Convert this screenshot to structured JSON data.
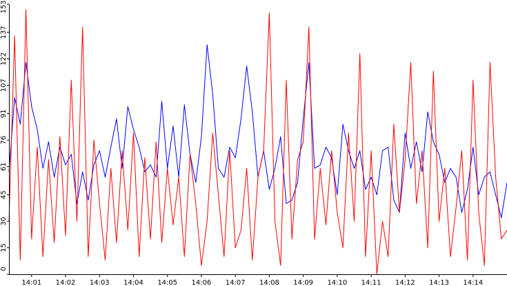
{
  "chart_data": {
    "type": "line",
    "title": "",
    "xlabel": "",
    "ylabel": "",
    "ylim": [
      0,
      153
    ],
    "xlim": [
      "14:00:20",
      "14:15:00"
    ],
    "y_ticks": [
      0,
      15,
      30,
      45,
      61,
      76,
      91,
      107,
      122,
      137,
      153
    ],
    "x_ticks": [
      "14:01",
      "14:02",
      "14:03",
      "14:04",
      "14:05",
      "14:06",
      "14:07",
      "14:08",
      "14:09",
      "14:10",
      "14:11",
      "14:12",
      "14:13",
      "14:14"
    ],
    "grid": false,
    "legend": "none",
    "series": [
      {
        "color": "#0000ff",
        "x": [
          "14:00:20",
          "14:00:30",
          "14:00:40",
          "14:00:50",
          "14:01:00",
          "14:01:10",
          "14:01:20",
          "14:01:30",
          "14:01:40",
          "14:01:50",
          "14:02:00",
          "14:02:10",
          "14:02:20",
          "14:02:30",
          "14:02:40",
          "14:02:50",
          "14:03:00",
          "14:03:10",
          "14:03:20",
          "14:03:30",
          "14:03:40",
          "14:03:50",
          "14:04:00",
          "14:04:10",
          "14:04:20",
          "14:04:30",
          "14:04:40",
          "14:04:50",
          "14:05:00",
          "14:05:10",
          "14:05:20",
          "14:05:30",
          "14:05:40",
          "14:05:50",
          "14:06:00",
          "14:06:10",
          "14:06:20",
          "14:06:30",
          "14:06:40",
          "14:06:50",
          "14:07:00",
          "14:07:10",
          "14:07:20",
          "14:07:30",
          "14:07:40",
          "14:07:50",
          "14:08:00",
          "14:08:10",
          "14:08:20",
          "14:08:30",
          "14:08:40",
          "14:08:50",
          "14:09:00",
          "14:09:10",
          "14:09:20",
          "14:09:30",
          "14:09:40",
          "14:09:50",
          "14:10:00",
          "14:10:10",
          "14:10:20",
          "14:10:30",
          "14:10:40",
          "14:10:50",
          "14:11:00",
          "14:11:10",
          "14:11:20",
          "14:11:30",
          "14:11:40",
          "14:11:50",
          "14:12:00",
          "14:12:10",
          "14:12:20",
          "14:12:30",
          "14:12:40",
          "14:12:50",
          "14:13:00",
          "14:13:10",
          "14:13:20",
          "14:13:30",
          "14:13:40",
          "14:13:50",
          "14:14:00",
          "14:14:10",
          "14:14:20",
          "14:14:30",
          "14:14:40",
          "14:14:50",
          "14:15:00"
        ],
        "values": [
          58,
          100,
          85,
          120,
          95,
          82,
          60,
          75,
          55,
          72,
          62,
          68,
          40,
          58,
          42,
          62,
          70,
          55,
          72,
          88,
          60,
          95,
          82,
          72,
          58,
          62,
          55,
          98,
          60,
          84,
          55,
          96,
          68,
          52,
          78,
          130,
          102,
          60,
          55,
          72,
          66,
          88,
          118,
          92,
          55,
          70,
          48,
          60,
          78,
          40,
          42,
          52,
          88,
          120,
          60,
          62,
          72,
          66,
          45,
          85,
          70,
          60,
          70,
          48,
          55,
          45,
          70,
          72,
          42,
          35,
          80,
          60,
          75,
          58,
          92,
          75,
          68,
          52,
          60,
          55,
          35,
          48,
          72,
          45,
          55,
          58,
          45,
          32,
          52
        ]
      },
      {
        "color": "#ff0000",
        "x": [
          "14:00:20",
          "14:00:30",
          "14:00:40",
          "14:00:50",
          "14:01:00",
          "14:01:10",
          "14:01:20",
          "14:01:30",
          "14:01:40",
          "14:01:50",
          "14:02:00",
          "14:02:10",
          "14:02:20",
          "14:02:30",
          "14:02:40",
          "14:02:50",
          "14:03:00",
          "14:03:10",
          "14:03:20",
          "14:03:30",
          "14:03:40",
          "14:03:50",
          "14:04:00",
          "14:04:10",
          "14:04:20",
          "14:04:30",
          "14:04:40",
          "14:04:50",
          "14:05:00",
          "14:05:10",
          "14:05:20",
          "14:05:30",
          "14:05:40",
          "14:05:50",
          "14:06:00",
          "14:06:10",
          "14:06:20",
          "14:06:30",
          "14:06:40",
          "14:06:50",
          "14:07:00",
          "14:07:10",
          "14:07:20",
          "14:07:30",
          "14:07:40",
          "14:07:50",
          "14:08:00",
          "14:08:10",
          "14:08:20",
          "14:08:30",
          "14:08:40",
          "14:08:50",
          "14:09:00",
          "14:09:10",
          "14:09:20",
          "14:09:30",
          "14:09:40",
          "14:09:50",
          "14:10:00",
          "14:10:10",
          "14:10:20",
          "14:10:30",
          "14:10:40",
          "14:10:50",
          "14:11:00",
          "14:11:10",
          "14:11:20",
          "14:11:30",
          "14:11:40",
          "14:11:50",
          "14:12:00",
          "14:12:10",
          "14:12:20",
          "14:12:30",
          "14:12:40",
          "14:12:50",
          "14:13:00",
          "14:13:10",
          "14:13:20",
          "14:13:30",
          "14:13:40",
          "14:13:50",
          "14:14:00",
          "14:14:10",
          "14:14:20",
          "14:14:30",
          "14:14:40",
          "14:14:50",
          "14:15:00"
        ],
        "values": [
          30,
          135,
          8,
          150,
          20,
          72,
          10,
          65,
          18,
          78,
          22,
          110,
          30,
          140,
          10,
          76,
          40,
          8,
          60,
          18,
          70,
          25,
          80,
          10,
          66,
          20,
          75,
          18,
          60,
          28,
          55,
          10,
          68,
          40,
          5,
          30,
          80,
          45,
          10,
          70,
          15,
          25,
          60,
          8,
          55,
          70,
          148,
          30,
          5,
          110,
          20,
          65,
          75,
          140,
          20,
          60,
          28,
          70,
          35,
          15,
          80,
          30,
          125,
          10,
          70,
          0,
          30,
          10,
          85,
          35,
          65,
          120,
          40,
          70,
          15,
          115,
          30,
          60,
          10,
          38,
          70,
          8,
          110,
          35,
          5,
          120,
          55,
          20,
          25
        ]
      }
    ]
  }
}
